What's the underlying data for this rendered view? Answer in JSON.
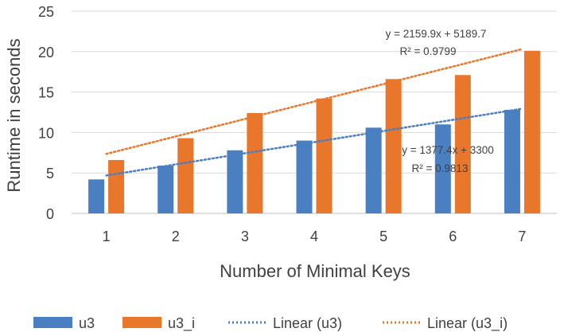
{
  "chart_data": {
    "type": "bar",
    "categories": [
      "1",
      "2",
      "3",
      "4",
      "5",
      "6",
      "7"
    ],
    "series": [
      {
        "name": "u3",
        "values": [
          4.2,
          5.9,
          7.8,
          9.0,
          10.6,
          11.0,
          12.8
        ],
        "color": "#4a7fc1"
      },
      {
        "name": "u3_i",
        "values": [
          6.6,
          9.3,
          12.4,
          14.2,
          16.6,
          17.1,
          20.1
        ],
        "color": "#e8762b"
      }
    ],
    "trendlines": [
      {
        "name": "Linear (u3)",
        "color": "#4a7fc1",
        "start": 4.68,
        "end": 12.94,
        "equation": "y = 1377.4x + 3300",
        "r2": "R² = 0.9813"
      },
      {
        "name": "Linear (u3_i)",
        "color": "#e8762b",
        "start": 7.35,
        "end": 20.31,
        "equation": "y = 2159.9x + 5189.7",
        "r2": "R² = 0.9799"
      }
    ],
    "xlabel": "Number of Minimal Keys",
    "ylabel": "Runtime in seconds",
    "ylim": [
      0,
      25
    ],
    "yticks": [
      "0",
      "5",
      "10",
      "15",
      "20",
      "25"
    ],
    "grid": true,
    "legend_position": "bottom"
  }
}
